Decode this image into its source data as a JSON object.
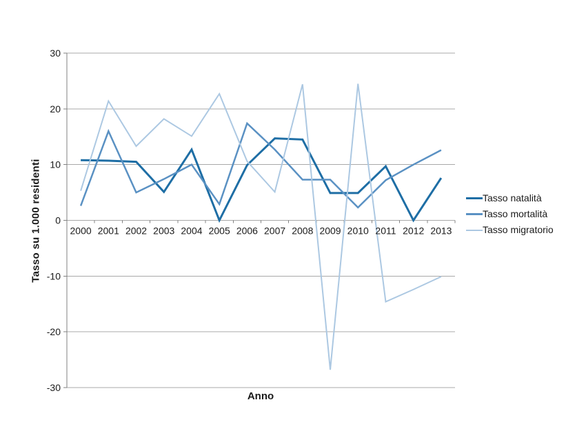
{
  "chart_data": {
    "type": "line",
    "title": "",
    "xlabel": "Anno",
    "ylabel": "Tasso su 1.000 residenti",
    "categories": [
      "2000",
      "2001",
      "2002",
      "2003",
      "2004",
      "2005",
      "2006",
      "2007",
      "2008",
      "2009",
      "2010",
      "2011",
      "2012",
      "2013"
    ],
    "series": [
      {
        "name": "Tasso natalità",
        "color": "#1E6EA5",
        "line_width": 3,
        "values": [
          10.8,
          10.7,
          10.5,
          5.1,
          12.7,
          0,
          9.9,
          14.7,
          14.5,
          4.9,
          4.9,
          9.7,
          0,
          7.6
        ]
      },
      {
        "name": "Tasso mortalità",
        "color": "#5A91C3",
        "line_width": 2.5,
        "values": [
          2.6,
          16,
          5,
          7.4,
          10,
          2.9,
          17.4,
          12.7,
          7.3,
          7.3,
          2.3,
          7.2,
          10,
          12.6
        ]
      },
      {
        "name": "Tasso migratorio",
        "color": "#ACC8E2",
        "line_width": 2,
        "values": [
          5.3,
          21.4,
          13.3,
          18.2,
          15.1,
          22.7,
          10.6,
          5.1,
          24.4,
          -26.8,
          24.5,
          -14.6,
          -12.4,
          -10.1
        ]
      }
    ],
    "ylim": [
      -30,
      30
    ],
    "yticks": [
      30,
      20,
      10,
      0,
      -10,
      -20,
      -30
    ],
    "grid": true,
    "legend_position": "right",
    "axis_color": "#808080",
    "gridline_color": "#A8A8A8",
    "text_color": "#1A1A1A"
  }
}
